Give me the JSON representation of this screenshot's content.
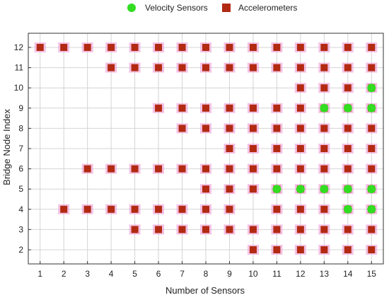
{
  "chart_data": {
    "type": "scatter",
    "xlabel": "Number of Sensors",
    "ylabel": "Bridge Node Index",
    "xlim": [
      0.5,
      15.5
    ],
    "ylim": [
      1.3,
      12.7
    ],
    "xticks": [
      1,
      2,
      3,
      4,
      5,
      6,
      7,
      8,
      9,
      10,
      11,
      12,
      13,
      14,
      15
    ],
    "yticks": [
      2,
      3,
      4,
      5,
      6,
      7,
      8,
      9,
      10,
      11,
      12
    ],
    "grid": true,
    "legend_position": "top",
    "series": [
      {
        "name": "Velocity Sensors",
        "marker": "circle",
        "color": "#33dd22",
        "points": [
          [
            11,
            5
          ],
          [
            12,
            5
          ],
          [
            13,
            9
          ],
          [
            13,
            5
          ],
          [
            14,
            9
          ],
          [
            14,
            5
          ],
          [
            14,
            4
          ],
          [
            15,
            10
          ],
          [
            15,
            9
          ],
          [
            15,
            5
          ],
          [
            15,
            4
          ]
        ]
      },
      {
        "name": "Accelerometers",
        "marker": "square",
        "color": "#b22a12",
        "points": [
          [
            1,
            12
          ],
          [
            2,
            12
          ],
          [
            2,
            4
          ],
          [
            3,
            12
          ],
          [
            3,
            6
          ],
          [
            3,
            4
          ],
          [
            4,
            12
          ],
          [
            4,
            11
          ],
          [
            4,
            6
          ],
          [
            4,
            4
          ],
          [
            5,
            12
          ],
          [
            5,
            11
          ],
          [
            5,
            6
          ],
          [
            5,
            4
          ],
          [
            5,
            3
          ],
          [
            6,
            12
          ],
          [
            6,
            11
          ],
          [
            6,
            9
          ],
          [
            6,
            6
          ],
          [
            6,
            4
          ],
          [
            6,
            3
          ],
          [
            7,
            12
          ],
          [
            7,
            11
          ],
          [
            7,
            9
          ],
          [
            7,
            8
          ],
          [
            7,
            6
          ],
          [
            7,
            4
          ],
          [
            7,
            3
          ],
          [
            8,
            12
          ],
          [
            8,
            11
          ],
          [
            8,
            9
          ],
          [
            8,
            8
          ],
          [
            8,
            6
          ],
          [
            8,
            5
          ],
          [
            8,
            4
          ],
          [
            8,
            3
          ],
          [
            9,
            12
          ],
          [
            9,
            11
          ],
          [
            9,
            9
          ],
          [
            9,
            8
          ],
          [
            9,
            7
          ],
          [
            9,
            6
          ],
          [
            9,
            5
          ],
          [
            9,
            4
          ],
          [
            9,
            3
          ],
          [
            10,
            12
          ],
          [
            10,
            11
          ],
          [
            10,
            9
          ],
          [
            10,
            8
          ],
          [
            10,
            7
          ],
          [
            10,
            6
          ],
          [
            10,
            5
          ],
          [
            10,
            3
          ],
          [
            10,
            2
          ],
          [
            11,
            12
          ],
          [
            11,
            11
          ],
          [
            11,
            9
          ],
          [
            11,
            8
          ],
          [
            11,
            7
          ],
          [
            11,
            6
          ],
          [
            11,
            5
          ],
          [
            11,
            4
          ],
          [
            11,
            3
          ],
          [
            11,
            2
          ],
          [
            12,
            12
          ],
          [
            12,
            11
          ],
          [
            12,
            10
          ],
          [
            12,
            9
          ],
          [
            12,
            8
          ],
          [
            12,
            7
          ],
          [
            12,
            6
          ],
          [
            12,
            5
          ],
          [
            12,
            4
          ],
          [
            12,
            3
          ],
          [
            12,
            2
          ],
          [
            13,
            12
          ],
          [
            13,
            11
          ],
          [
            13,
            10
          ],
          [
            13,
            9
          ],
          [
            13,
            8
          ],
          [
            13,
            7
          ],
          [
            13,
            6
          ],
          [
            13,
            5
          ],
          [
            13,
            4
          ],
          [
            13,
            3
          ],
          [
            13,
            2
          ],
          [
            14,
            12
          ],
          [
            14,
            11
          ],
          [
            14,
            10
          ],
          [
            14,
            9
          ],
          [
            14,
            8
          ],
          [
            14,
            7
          ],
          [
            14,
            6
          ],
          [
            14,
            5
          ],
          [
            14,
            4
          ],
          [
            14,
            3
          ],
          [
            14,
            2
          ],
          [
            15,
            12
          ],
          [
            15,
            11
          ],
          [
            15,
            10
          ],
          [
            15,
            9
          ],
          [
            15,
            8
          ],
          [
            15,
            7
          ],
          [
            15,
            6
          ],
          [
            15,
            5
          ],
          [
            15,
            4
          ],
          [
            15,
            3
          ],
          [
            15,
            2
          ]
        ]
      }
    ]
  },
  "colors": {
    "grid": "#d4d4d4",
    "axes": "#333333",
    "marker_halo": "#f0a8d8",
    "velocity": "#33dd22",
    "accelerometer": "#b22a12"
  }
}
